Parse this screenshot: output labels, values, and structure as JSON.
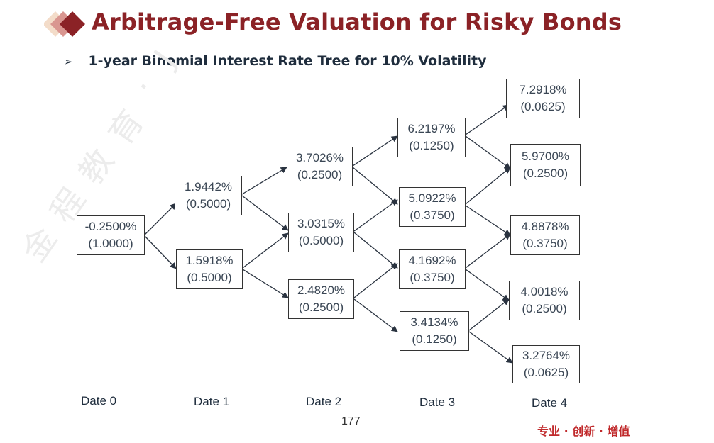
{
  "title": "Arbitrage-Free Valuation for Risky Bonds",
  "subtitle": "1-year Binomial Interest Rate Tree for 10% Volatility",
  "bullet": "➢",
  "watermark": [
    "金",
    "程",
    "教",
    "育",
    "·",
    "J",
    "I",
    "N"
  ],
  "nodes": [
    {
      "rate": "-0.2500%",
      "prob": "(1.0000)"
    },
    {
      "rate": "1.9442%",
      "prob": "(0.5000)"
    },
    {
      "rate": "1.5918%",
      "prob": "(0.5000)"
    },
    {
      "rate": "3.7026%",
      "prob": "(0.2500)"
    },
    {
      "rate": "3.0315%",
      "prob": "(0.5000)"
    },
    {
      "rate": "2.4820%",
      "prob": "(0.2500)"
    },
    {
      "rate": "6.2197%",
      "prob": "(0.1250)"
    },
    {
      "rate": "5.0922%",
      "prob": "(0.3750)"
    },
    {
      "rate": "4.1692%",
      "prob": "(0.3750)"
    },
    {
      "rate": "3.4134%",
      "prob": "(0.1250)"
    },
    {
      "rate": "7.2918%",
      "prob": "(0.0625)"
    },
    {
      "rate": "5.9700%",
      "prob": "(0.2500)"
    },
    {
      "rate": "4.8878%",
      "prob": "(0.3750)"
    },
    {
      "rate": "4.0018%",
      "prob": "(0.2500)"
    },
    {
      "rate": "3.2764%",
      "prob": "(0.0625)"
    }
  ],
  "dates": [
    "Date 0",
    "Date 1",
    "Date 2",
    "Date 3",
    "Date 4"
  ],
  "page_number": "177",
  "slogan": "专业 · 创新 · 增值",
  "colors": {
    "title": "#8b2226",
    "slogan": "#c0292b",
    "text": "#1f2d3d"
  }
}
